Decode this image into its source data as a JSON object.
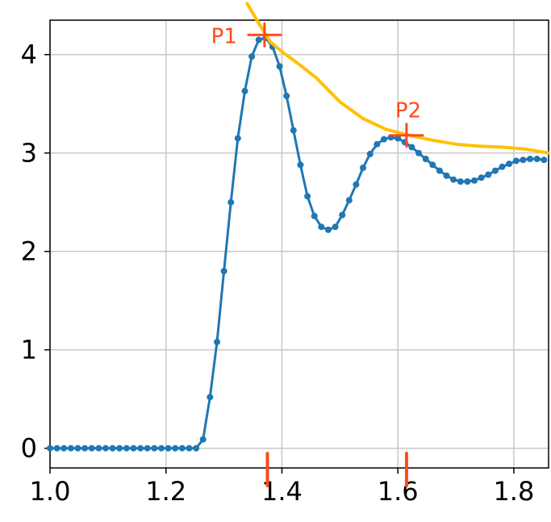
{
  "chart_data": {
    "type": "line",
    "title": "",
    "xlabel": "",
    "ylabel": "",
    "xlim": [
      1.0,
      1.86
    ],
    "ylim": [
      -0.2,
      4.35
    ],
    "grid": true,
    "x_ticks": [
      1.0,
      1.2,
      1.4,
      1.6,
      1.8
    ],
    "x_tick_labels": [
      "1.0",
      "1.2",
      "1.4",
      "1.6",
      "1.8"
    ],
    "y_ticks": [
      0,
      1,
      2,
      3,
      4
    ],
    "y_tick_labels": [
      "0",
      "1",
      "2",
      "3",
      "4"
    ],
    "series": [
      {
        "color": "#1f77b4",
        "marker": "dot",
        "points": [
          [
            1.0,
            0.0
          ],
          [
            1.012,
            0.0
          ],
          [
            1.024,
            0.0
          ],
          [
            1.036,
            0.0
          ],
          [
            1.048,
            0.0
          ],
          [
            1.06,
            0.0
          ],
          [
            1.072,
            0.0
          ],
          [
            1.084,
            0.0
          ],
          [
            1.096,
            0.0
          ],
          [
            1.108,
            0.0
          ],
          [
            1.12,
            0.0
          ],
          [
            1.132,
            0.0
          ],
          [
            1.144,
            0.0
          ],
          [
            1.156,
            0.0
          ],
          [
            1.168,
            0.0
          ],
          [
            1.18,
            0.0
          ],
          [
            1.192,
            0.0
          ],
          [
            1.204,
            0.0
          ],
          [
            1.216,
            0.0
          ],
          [
            1.228,
            0.0
          ],
          [
            1.24,
            0.0
          ],
          [
            1.252,
            0.0
          ],
          [
            1.264,
            0.09
          ],
          [
            1.276,
            0.52
          ],
          [
            1.288,
            1.08
          ],
          [
            1.3,
            1.8
          ],
          [
            1.312,
            2.5
          ],
          [
            1.324,
            3.15
          ],
          [
            1.336,
            3.63
          ],
          [
            1.348,
            3.98
          ],
          [
            1.36,
            4.15
          ],
          [
            1.372,
            4.17
          ],
          [
            1.384,
            4.08
          ],
          [
            1.396,
            3.88
          ],
          [
            1.408,
            3.58
          ],
          [
            1.42,
            3.23
          ],
          [
            1.432,
            2.88
          ],
          [
            1.444,
            2.56
          ],
          [
            1.456,
            2.36
          ],
          [
            1.468,
            2.25
          ],
          [
            1.48,
            2.22
          ],
          [
            1.492,
            2.25
          ],
          [
            1.504,
            2.37
          ],
          [
            1.516,
            2.52
          ],
          [
            1.528,
            2.68
          ],
          [
            1.54,
            2.85
          ],
          [
            1.552,
            2.99
          ],
          [
            1.564,
            3.09
          ],
          [
            1.576,
            3.14
          ],
          [
            1.588,
            3.16
          ],
          [
            1.6,
            3.15
          ],
          [
            1.612,
            3.11
          ],
          [
            1.624,
            3.06
          ],
          [
            1.636,
            3.0
          ],
          [
            1.648,
            2.94
          ],
          [
            1.66,
            2.88
          ],
          [
            1.672,
            2.82
          ],
          [
            1.684,
            2.77
          ],
          [
            1.696,
            2.73
          ],
          [
            1.708,
            2.71
          ],
          [
            1.72,
            2.71
          ],
          [
            1.732,
            2.72
          ],
          [
            1.744,
            2.75
          ],
          [
            1.756,
            2.78
          ],
          [
            1.768,
            2.82
          ],
          [
            1.78,
            2.86
          ],
          [
            1.792,
            2.89
          ],
          [
            1.804,
            2.92
          ],
          [
            1.816,
            2.93
          ],
          [
            1.828,
            2.94
          ],
          [
            1.84,
            2.94
          ],
          [
            1.852,
            2.93
          ]
        ]
      }
    ],
    "annotations": [
      {
        "label": "P1",
        "x": 1.37,
        "y": 4.2,
        "color": "#ff4a1c"
      },
      {
        "label": "P2",
        "x": 1.615,
        "y": 3.18,
        "color": "#ff4a1c"
      }
    ],
    "envelope": {
      "color": "#ffc107",
      "points": [
        [
          1.34,
          4.52
        ],
        [
          1.36,
          4.32
        ],
        [
          1.38,
          4.13
        ],
        [
          1.4,
          4.03
        ],
        [
          1.43,
          3.9
        ],
        [
          1.46,
          3.76
        ],
        [
          1.5,
          3.52
        ],
        [
          1.54,
          3.35
        ],
        [
          1.58,
          3.24
        ],
        [
          1.62,
          3.18
        ],
        [
          1.66,
          3.13
        ],
        [
          1.7,
          3.09
        ],
        [
          1.74,
          3.07
        ],
        [
          1.78,
          3.06
        ],
        [
          1.82,
          3.04
        ],
        [
          1.86,
          3.0
        ]
      ]
    },
    "x_markers": [
      1.375,
      1.615
    ]
  }
}
